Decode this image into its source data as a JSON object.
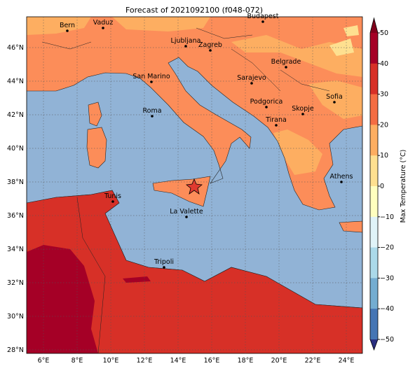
{
  "title": "Forecast of 2021092100 (f048-072)",
  "lat_ticks": [
    "46°N",
    "44°N",
    "42°N",
    "40°N",
    "38°N",
    "36°N",
    "34°N",
    "32°N",
    "30°N",
    "28°N"
  ],
  "lon_ticks": [
    "6°E",
    "8°E",
    "10°E",
    "12°E",
    "14°E",
    "16°E",
    "18°E",
    "20°E",
    "22°E",
    "24°E"
  ],
  "cities": [
    "Bern",
    "Vaduz",
    "Budapest",
    "Ljubljana",
    "Zagreb",
    "Belgrade",
    "San Marino",
    "Sarajevo",
    "Sofia",
    "Podgorica",
    "Skopje",
    "Roma",
    "Tirana",
    "Athens",
    "Tunis",
    "La Valette",
    "Tripoli"
  ],
  "colorbar": {
    "label": "Max Temperature (°C)",
    "ticks": [
      "50",
      "40",
      "30",
      "20",
      "10",
      "0",
      "−10",
      "−20",
      "−30",
      "−40",
      "−50"
    ]
  }
}
